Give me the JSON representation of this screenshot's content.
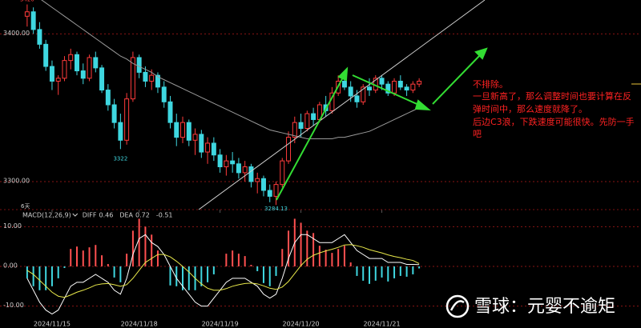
{
  "chart_data": [
    {
      "type": "candlestick",
      "period_label": "6天",
      "open": [
        3412,
        3415,
        3403,
        3393,
        3378,
        3368,
        3370,
        3382,
        3386,
        3375,
        3370,
        3384,
        3377,
        3362,
        3352,
        3340,
        3328,
        3356,
        3384,
        3374,
        3368,
        3372,
        3364,
        3354,
        3340,
        3330,
        3340,
        3328,
        3332,
        3320,
        3326,
        3318,
        3310,
        3314,
        3312,
        3306,
        3310,
        3300,
        3302,
        3294,
        3290,
        3298,
        3314,
        3330,
        3340,
        3336,
        3346,
        3342,
        3352,
        3348,
        3360,
        3368,
        3364,
        3358,
        3354,
        3364,
        3362,
        3370,
        3366,
        3360,
        3368,
        3364,
        3362,
        3366
      ],
      "high": [
        3420,
        3418,
        3408,
        3396,
        3382,
        3372,
        3385,
        3390,
        3388,
        3380,
        3386,
        3388,
        3379,
        3366,
        3356,
        3346,
        3360,
        3388,
        3386,
        3378,
        3376,
        3374,
        3368,
        3358,
        3346,
        3344,
        3342,
        3336,
        3335,
        3330,
        3330,
        3322,
        3318,
        3320,
        3316,
        3314,
        3312,
        3306,
        3304,
        3298,
        3300,
        3316,
        3334,
        3344,
        3346,
        3348,
        3350,
        3354,
        3358,
        3364,
        3372,
        3375.25,
        3368,
        3362,
        3366,
        3370,
        3372,
        3372,
        3368,
        3370,
        3372,
        3366,
        3368,
        3370
      ],
      "low": [
        3405,
        3400,
        3390,
        3375,
        3362,
        3358.71,
        3368,
        3376,
        3372,
        3366,
        3368,
        3374,
        3360,
        3348,
        3336,
        3322,
        3325,
        3354,
        3370,
        3364,
        3362,
        3360,
        3350,
        3336,
        3324,
        3326,
        3324,
        3318,
        3316,
        3312,
        3314,
        3306,
        3304,
        3306,
        3302,
        3300,
        3296,
        3292,
        3290,
        3286,
        3284.13,
        3296,
        3312,
        3326,
        3330,
        3334,
        3338,
        3340,
        3344,
        3346,
        3358,
        3362,
        3354,
        3350,
        3352,
        3358,
        3360,
        3362,
        3358,
        3358,
        3362,
        3358,
        3360,
        3364
      ],
      "close": [
        3415,
        3403,
        3393,
        3378,
        3368,
        3370,
        3382,
        3386,
        3375,
        3370,
        3384,
        3377,
        3362,
        3352,
        3340,
        3328,
        3356,
        3384,
        3374,
        3368,
        3372,
        3364,
        3354,
        3340,
        3330,
        3340,
        3328,
        3332,
        3320,
        3326,
        3318,
        3310,
        3314,
        3312,
        3306,
        3310,
        3300,
        3302,
        3294,
        3290,
        3298,
        3314,
        3330,
        3340,
        3336,
        3346,
        3342,
        3352,
        3348,
        3360,
        3368,
        3364,
        3358,
        3354,
        3364,
        3362,
        3370,
        3366,
        3360,
        3368,
        3364,
        3362,
        3366,
        3368
      ],
      "up_color": "#ff3b3b",
      "down_color": "#3fd7e0",
      "ma": {
        "color": "#9a9a9a",
        "values": [
          3432,
          3428,
          3424,
          3421,
          3418,
          3415,
          3412,
          3409,
          3406,
          3403,
          3400,
          3397,
          3394,
          3391,
          3388,
          3385,
          3383,
          3380,
          3378,
          3376,
          3374,
          3371,
          3369,
          3367,
          3365,
          3363,
          3361,
          3359,
          3357,
          3355,
          3353,
          3351,
          3349,
          3347,
          3345,
          3343,
          3341,
          3339,
          3337,
          3335,
          3334,
          3333,
          3332,
          3331,
          3330,
          3329,
          3329,
          3329,
          3329,
          3329,
          3330,
          3330,
          3331,
          3332,
          3333,
          3334,
          3336,
          3338,
          3340,
          3342,
          3344,
          3346,
          3348,
          3350
        ]
      },
      "ylim": [
        3281,
        3423
      ],
      "yticks": [
        {
          "value": 3400,
          "label": "3400.00"
        },
        {
          "value": 3300,
          "label": "3300.00"
        }
      ]
    },
    {
      "type": "macd",
      "title": "MACD(12,26,9)",
      "x": [
        null,
        null,
        null,
        null,
        "2024/11/15",
        null,
        null,
        null,
        null,
        null,
        null,
        null,
        null,
        null,
        null,
        null,
        null,
        null,
        "2024/11/18",
        null,
        null,
        null,
        null,
        null,
        null,
        null,
        null,
        null,
        null,
        null,
        null,
        "2024/11/19",
        null,
        null,
        null,
        null,
        null,
        null,
        null,
        null,
        null,
        null,
        null,
        null,
        "2024/11/20",
        null,
        null,
        null,
        null,
        null,
        null,
        null,
        null,
        null,
        null,
        null,
        null,
        "2024/11/21",
        null,
        null,
        null,
        null,
        null,
        null
      ],
      "series": [
        {
          "name": "DIFF",
          "color": "#ffffff",
          "values": [
            -3,
            -6,
            -9,
            -11,
            -12,
            -11,
            -8,
            -5,
            -4,
            -4,
            -3,
            -2,
            -3,
            -4,
            -6,
            -7,
            -3,
            3,
            7,
            8,
            6,
            5,
            3,
            0,
            -3,
            -5,
            -7,
            -9,
            -10,
            -10,
            -8,
            -6,
            -4,
            -3,
            -3,
            -3,
            -4,
            -5,
            -7,
            -8,
            -7,
            -3,
            2,
            6,
            8,
            8,
            7,
            6,
            6,
            6,
            7,
            8,
            6,
            4,
            3,
            2,
            2,
            2,
            1,
            1,
            1,
            0.5,
            0.5,
            0.46
          ]
        },
        {
          "name": "DEA",
          "color": "#e8e84a",
          "values": [
            -1,
            -2,
            -3.5,
            -5,
            -6.5,
            -7.5,
            -7.8,
            -7.2,
            -6.5,
            -6,
            -5.4,
            -4.7,
            -4.4,
            -4.3,
            -4.6,
            -5,
            -4.6,
            -3,
            -1,
            1,
            2,
            3,
            3,
            2.4,
            1.3,
            0,
            -1.4,
            -3,
            -4.4,
            -5.5,
            -6,
            -6,
            -5.6,
            -5,
            -4.6,
            -4.3,
            -4.2,
            -4.4,
            -4.9,
            -5.5,
            -5.8,
            -5.2,
            -3.8,
            -1.8,
            0.2,
            1.8,
            2.8,
            3.4,
            3.9,
            4.3,
            4.8,
            5.4,
            5.5,
            5.2,
            4.8,
            4.2,
            3.8,
            3.4,
            2.9,
            2.5,
            2.2,
            1.8,
            1.5,
            0.72
          ]
        }
      ],
      "histogram": {
        "up_color": "#ff5050",
        "down_color": "#3fd7e0",
        "values": [
          -3,
          -5,
          -6,
          -6,
          -5,
          -3,
          -0.4,
          4.4,
          5,
          4,
          4.8,
          5.4,
          2.8,
          0.6,
          -2.8,
          -4,
          3.2,
          9,
          12,
          10,
          8,
          4,
          0,
          -4.8,
          -5,
          -6,
          -6,
          -6,
          -5,
          -4,
          -2,
          0,
          3.2,
          4,
          3.2,
          2.6,
          0.4,
          -1.2,
          -4.2,
          -5,
          -2.4,
          4.4,
          9,
          12,
          11,
          9,
          8.4,
          5.2,
          4.2,
          3.4,
          4.4,
          5.2,
          1,
          -2.4,
          -3.6,
          -4.4,
          -3.6,
          -2.8,
          -3.8,
          -3,
          -2.4,
          -2.6,
          -2,
          -0.51
        ]
      },
      "ylim": [
        -13.5,
        13.7
      ],
      "yticks": [
        {
          "value": 10,
          "label": "10.00"
        },
        {
          "value": 0,
          "label": "0.00"
        },
        {
          "value": -10,
          "label": "-10.00"
        }
      ]
    }
  ],
  "annotation": {
    "lines": [
      "不排除。",
      "一旦新高了，那么调整时间也要计算在反",
      "弹时间中，那么速度就降了。",
      "后边C3浪，下跌速度可能很快。先防一手",
      "吧"
    ]
  },
  "watermark": "雪球：元婴不逾矩"
}
